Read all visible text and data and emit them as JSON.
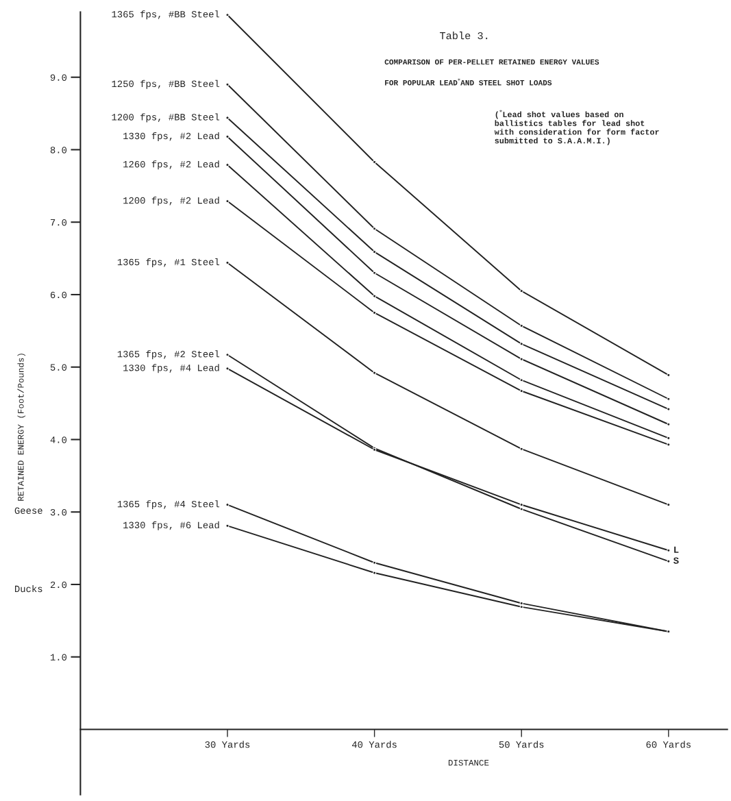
{
  "chart_data": {
    "type": "line",
    "title": "Table 3.",
    "subtitle": "COMPARISON OF PER-PELLET RETAINED ENERGY VALUES\n\nFOR POPULAR LEAD$^{*}$AND STEEL SHOT LOADS",
    "xlabel": "DISTANCE",
    "ylabel": "RETAINED ENERGY (Foot/Pounds)",
    "categories": [
      "30 Yards",
      "40 Yards",
      "50 Yards",
      "60 Yards"
    ],
    "ylim": [
      -0.9,
      9.9
    ],
    "yticks": [
      {
        "value": 1,
        "label": "1.0"
      },
      {
        "value": 2,
        "label": "2.0"
      },
      {
        "value": 3,
        "label": "3.0"
      },
      {
        "value": 4,
        "label": "4.0"
      },
      {
        "value": 5,
        "label": "5.0"
      },
      {
        "value": 6,
        "label": "6.0"
      },
      {
        "value": 7,
        "label": "7.0"
      },
      {
        "value": 8,
        "label": "8.0"
      },
      {
        "value": 9,
        "label": "9.0"
      }
    ],
    "grid": false,
    "legend": false,
    "marker": "circle",
    "line_style": "solid",
    "series": [
      {
        "name": "1365 fps, #BB Steel",
        "color": "#222222",
        "values": [
          9.86,
          7.83,
          6.05,
          4.89
        ]
      },
      {
        "name": "1250 fps, #BB Steel",
        "color": "#222222",
        "values": [
          8.9,
          6.91,
          5.57,
          4.56
        ]
      },
      {
        "name": "1200 fps, #BB Steel",
        "color": "#222222",
        "values": [
          8.44,
          6.59,
          5.32,
          4.42
        ]
      },
      {
        "name": "1330 fps, #2 Lead",
        "color": "#222222",
        "values": [
          8.18,
          6.3,
          5.11,
          4.21
        ]
      },
      {
        "name": "1260 fps, #2 Lead",
        "color": "#222222",
        "values": [
          7.79,
          5.98,
          4.82,
          4.02
        ]
      },
      {
        "name": "1200 fps, #2 Lead",
        "color": "#222222",
        "values": [
          7.29,
          5.75,
          4.67,
          3.93
        ]
      },
      {
        "name": "1365 fps, #1 Steel",
        "color": "#222222",
        "values": [
          6.44,
          4.92,
          3.87,
          3.1
        ]
      },
      {
        "name": "1365 fps, #2 Steel",
        "color": "#222222",
        "values": [
          5.17,
          3.88,
          3.04,
          2.32
        ]
      },
      {
        "name": "1330 fps, #4 Lead",
        "color": "#222222",
        "values": [
          4.98,
          3.86,
          3.1,
          2.47
        ]
      },
      {
        "name": "1365 fps, #4 Steel",
        "color": "#222222",
        "values": [
          3.1,
          2.3,
          1.74,
          1.35
        ]
      },
      {
        "name": "1330 fps, #6 Lead",
        "color": "#222222",
        "values": [
          2.81,
          2.16,
          1.69,
          1.35
        ]
      }
    ],
    "annotations": [
      "($^{*}$Lead shot values based on\nballistics tables for lead shot\nwith consideration for form factor\nsubmitted to S.A.A.M.I.)",
      {
        "text": "L",
        "x": "60 Yards",
        "y": 2.47
      },
      {
        "text": "S",
        "x": "60 Yards",
        "y": 2.32
      },
      "Geese",
      "Ducks"
    ]
  }
}
